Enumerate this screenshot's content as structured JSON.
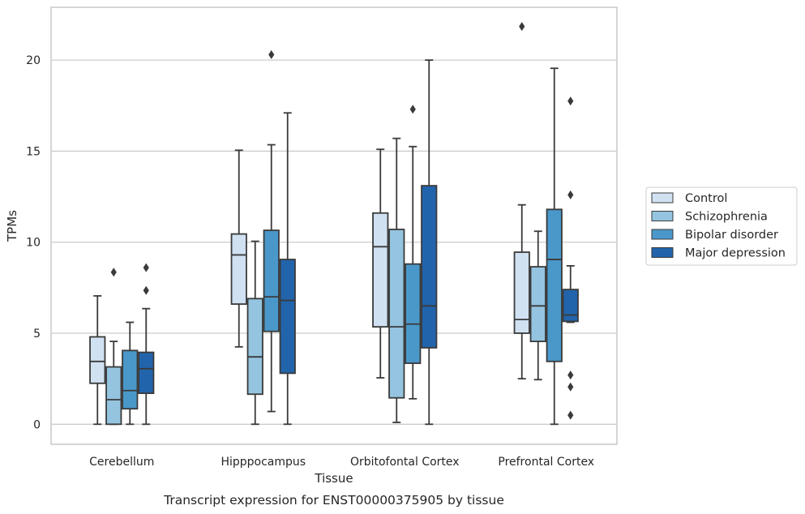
{
  "chart_data": {
    "type": "boxplot",
    "caption": "Transcript expression for ENST00000375905 by tissue",
    "xlabel": "Tissue",
    "ylabel": "TPMs",
    "ylim": [
      -1.1,
      22.9
    ],
    "yticks": [
      0,
      5,
      10,
      15,
      20
    ],
    "grid": "horizontal",
    "legend_position": "right",
    "categories": [
      "Cerebellum",
      "Hipppocampus",
      "Orbitofontal Cortex",
      "Prefrontal Cortex"
    ],
    "series": [
      {
        "name": "Control",
        "color": "#d0e1f2",
        "boxes": [
          {
            "whislo": 0.0,
            "q1": 2.25,
            "med": 3.45,
            "q3": 4.8,
            "whishi": 7.05,
            "fliers": []
          },
          {
            "whislo": 4.25,
            "q1": 6.6,
            "med": 9.3,
            "q3": 10.45,
            "whishi": 15.05,
            "fliers": []
          },
          {
            "whislo": 2.55,
            "q1": 5.35,
            "med": 9.75,
            "q3": 11.6,
            "whishi": 15.1,
            "fliers": []
          },
          {
            "whislo": 2.5,
            "q1": 5.0,
            "med": 5.75,
            "q3": 9.45,
            "whishi": 12.05,
            "fliers": [
              21.85
            ]
          }
        ]
      },
      {
        "name": "Schizophrenia",
        "color": "#94c4df",
        "boxes": [
          {
            "whislo": 0.0,
            "q1": 0.0,
            "med": 1.35,
            "q3": 3.15,
            "whishi": 4.55,
            "fliers": [
              8.35
            ]
          },
          {
            "whislo": 0.0,
            "q1": 1.65,
            "med": 3.7,
            "q3": 6.9,
            "whishi": 10.05,
            "fliers": []
          },
          {
            "whislo": 0.1,
            "q1": 1.45,
            "med": 5.35,
            "q3": 10.7,
            "whishi": 15.7,
            "fliers": []
          },
          {
            "whislo": 2.45,
            "q1": 4.55,
            "med": 6.5,
            "q3": 8.65,
            "whishi": 10.6,
            "fliers": []
          }
        ]
      },
      {
        "name": "Bipolar disorder",
        "color": "#4a98c9",
        "boxes": [
          {
            "whislo": 0.0,
            "q1": 0.85,
            "med": 1.85,
            "q3": 4.05,
            "whishi": 5.6,
            "fliers": []
          },
          {
            "whislo": 0.7,
            "q1": 5.1,
            "med": 7.0,
            "q3": 10.65,
            "whishi": 15.35,
            "fliers": [
              20.3
            ]
          },
          {
            "whislo": 1.4,
            "q1": 3.35,
            "med": 5.5,
            "q3": 8.8,
            "whishi": 15.25,
            "fliers": [
              17.3
            ]
          },
          {
            "whislo": 0.0,
            "q1": 3.45,
            "med": 9.05,
            "q3": 11.8,
            "whishi": 19.55,
            "fliers": []
          }
        ]
      },
      {
        "name": "Major depression",
        "color": "#2164ab",
        "boxes": [
          {
            "whislo": 0.0,
            "q1": 1.7,
            "med": 3.05,
            "q3": 3.95,
            "whishi": 6.35,
            "fliers": [
              7.35,
              8.6
            ]
          },
          {
            "whislo": 0.0,
            "q1": 2.8,
            "med": 6.8,
            "q3": 9.05,
            "whishi": 17.1,
            "fliers": []
          },
          {
            "whislo": 0.0,
            "q1": 4.2,
            "med": 6.5,
            "q3": 13.1,
            "whishi": 20.0,
            "fliers": []
          },
          {
            "whislo": 5.6,
            "q1": 5.65,
            "med": 6.0,
            "q3": 7.4,
            "whishi": 8.7,
            "fliers": [
              0.5,
              2.05,
              2.7,
              12.6,
              17.75
            ]
          }
        ]
      }
    ]
  }
}
